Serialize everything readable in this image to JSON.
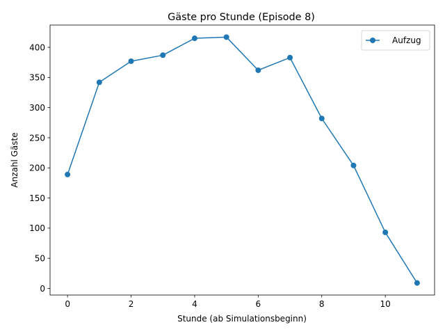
{
  "chart_data": {
    "type": "line",
    "title": "Gäste pro Stunde (Episode 8)",
    "xlabel": "Stunde (ab Simulationsbeginn)",
    "ylabel": "Anzahl Gäste",
    "xlim": [
      -0.55,
      11.55
    ],
    "ylim": [
      -11,
      437
    ],
    "xticks": [
      0,
      2,
      4,
      6,
      8,
      10
    ],
    "yticks": [
      0,
      50,
      100,
      150,
      200,
      250,
      300,
      350,
      400
    ],
    "grid": false,
    "legend_position": "top-right",
    "series": [
      {
        "name": "Aufzug",
        "color": "#1f77b4",
        "marker": "circle",
        "x": [
          0,
          1,
          2,
          3,
          4,
          5,
          6,
          7,
          8,
          9,
          10,
          11
        ],
        "y": [
          189,
          342,
          377,
          387,
          415,
          417,
          362,
          383,
          282,
          204,
          93,
          9
        ]
      }
    ]
  }
}
